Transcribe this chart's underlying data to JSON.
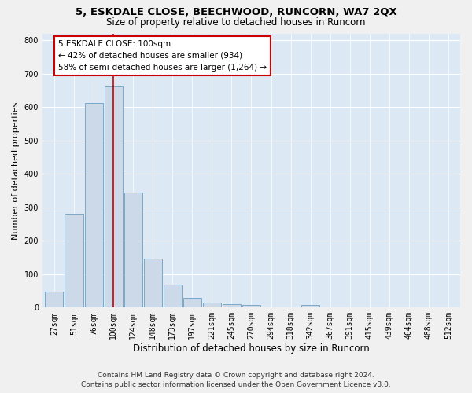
{
  "title1": "5, ESKDALE CLOSE, BEECHWOOD, RUNCORN, WA7 2QX",
  "title2": "Size of property relative to detached houses in Runcorn",
  "xlabel": "Distribution of detached houses by size in Runcorn",
  "ylabel": "Number of detached properties",
  "footnote1": "Contains HM Land Registry data © Crown copyright and database right 2024.",
  "footnote2": "Contains public sector information licensed under the Open Government Licence v3.0.",
  "bar_labels": [
    "27sqm",
    "51sqm",
    "76sqm",
    "100sqm",
    "124sqm",
    "148sqm",
    "173sqm",
    "197sqm",
    "221sqm",
    "245sqm",
    "270sqm",
    "294sqm",
    "318sqm",
    "342sqm",
    "367sqm",
    "391sqm",
    "415sqm",
    "439sqm",
    "464sqm",
    "488sqm",
    "512sqm"
  ],
  "bar_values": [
    47,
    280,
    612,
    662,
    345,
    147,
    70,
    30,
    15,
    10,
    8,
    0,
    0,
    8,
    0,
    0,
    0,
    0,
    0,
    0,
    0
  ],
  "bar_color": "#ccd9e8",
  "bar_edge_color": "#7aaac8",
  "highlight_bar_index": 3,
  "vline_color": "#cc0000",
  "annotation_text": "5 ESKDALE CLOSE: 100sqm\n← 42% of detached houses are smaller (934)\n58% of semi-detached houses are larger (1,264) →",
  "annotation_box_facecolor": "#ffffff",
  "annotation_box_edgecolor": "#cc0000",
  "ylim": [
    0,
    820
  ],
  "yticks": [
    0,
    100,
    200,
    300,
    400,
    500,
    600,
    700,
    800
  ],
  "plot_bg_color": "#dce8f4",
  "fig_bg_color": "#f0f0f0",
  "title1_fontsize": 9.5,
  "title2_fontsize": 8.5,
  "xlabel_fontsize": 8.5,
  "ylabel_fontsize": 8,
  "tick_fontsize": 7,
  "annot_fontsize": 7.5,
  "footnote_fontsize": 6.5
}
